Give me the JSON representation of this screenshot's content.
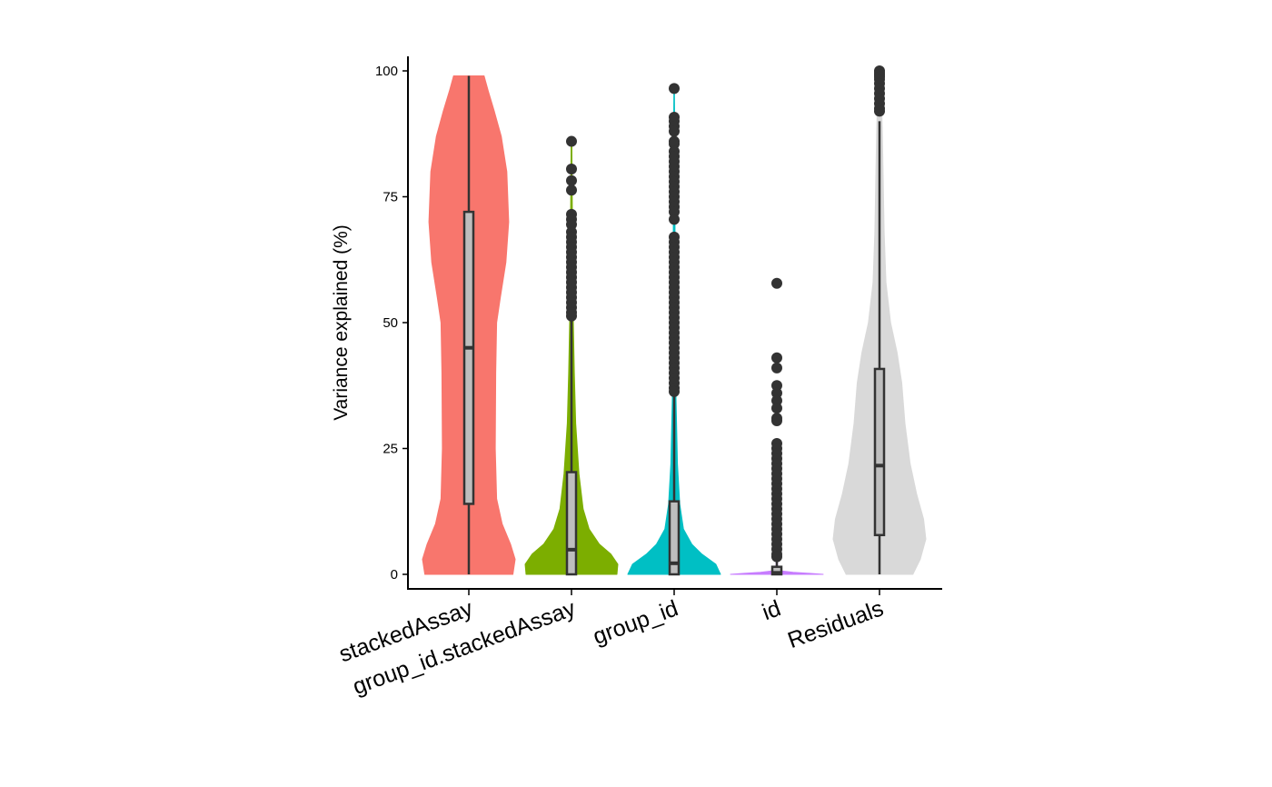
{
  "chart_data": {
    "type": "violin",
    "title": "",
    "xlabel": "",
    "ylabel": "Variance explained (%)",
    "ylim": [
      -2.5,
      103
    ],
    "yticks": [
      "0",
      "25",
      "50",
      "75",
      "100"
    ],
    "grid": false,
    "legend": "none",
    "categories": [
      "stackedAssay",
      "group_id.stackedAssay",
      "group_id",
      "id",
      "Residuals"
    ],
    "colors": [
      "#F8766D",
      "#7CAE00",
      "#00BFC4",
      "#C77CFF",
      "#D9D9D9"
    ],
    "box_fill": "#BEBEBE",
    "series": [
      {
        "name": "stackedAssay",
        "density": [
          [
            0,
            0.95
          ],
          [
            3,
            1.0
          ],
          [
            6,
            0.9
          ],
          [
            10,
            0.72
          ],
          [
            15,
            0.6
          ],
          [
            25,
            0.57
          ],
          [
            40,
            0.58
          ],
          [
            50,
            0.6
          ],
          [
            55,
            0.68
          ],
          [
            62,
            0.8
          ],
          [
            70,
            0.86
          ],
          [
            80,
            0.82
          ],
          [
            87,
            0.7
          ],
          [
            92,
            0.55
          ],
          [
            96,
            0.42
          ],
          [
            99,
            0.33
          ]
        ],
        "box": {
          "min": 0,
          "q1": 14,
          "median": 45,
          "q3": 72,
          "max": 99
        },
        "outliers": []
      },
      {
        "name": "group_id.stackedAssay",
        "density": [
          [
            0,
            0.98
          ],
          [
            2,
            1.0
          ],
          [
            4,
            0.85
          ],
          [
            6,
            0.6
          ],
          [
            9,
            0.38
          ],
          [
            13,
            0.25
          ],
          [
            20,
            0.16
          ],
          [
            30,
            0.09
          ],
          [
            40,
            0.06
          ],
          [
            50,
            0.04
          ],
          [
            60,
            0.03
          ],
          [
            70,
            0.02
          ],
          [
            80,
            0.012
          ],
          [
            86,
            0.008
          ]
        ],
        "box": {
          "min": 0,
          "q1": 0,
          "median": 4.9,
          "q3": 20.3,
          "max": 51
        },
        "outliers": [
          86,
          80.5,
          78.2,
          76.3,
          71.5,
          70.5,
          69.5,
          68,
          67,
          66,
          65,
          64,
          63,
          62,
          61,
          60,
          59,
          58,
          57,
          56,
          55,
          54,
          53,
          52,
          51.3
        ]
      },
      {
        "name": "group_id",
        "density": [
          [
            0,
            1.0
          ],
          [
            2,
            0.9
          ],
          [
            4,
            0.6
          ],
          [
            6,
            0.38
          ],
          [
            9,
            0.2
          ],
          [
            14,
            0.12
          ],
          [
            22,
            0.07
          ],
          [
            35,
            0.04
          ],
          [
            50,
            0.025
          ],
          [
            70,
            0.018
          ],
          [
            90,
            0.01
          ],
          [
            96,
            0.006
          ]
        ],
        "box": {
          "min": 0,
          "q1": 0,
          "median": 2.2,
          "q3": 14.5,
          "max": 36
        },
        "outliers": [
          96.5,
          90.8,
          90,
          89,
          88,
          86,
          85.5,
          84,
          83,
          82,
          81,
          80,
          79,
          78,
          77,
          76,
          75,
          74,
          73,
          72,
          70.5,
          67,
          66,
          65,
          64,
          63,
          62,
          61,
          60,
          59,
          58,
          57,
          56,
          55,
          54,
          53,
          52,
          51,
          50,
          49,
          48,
          47,
          46,
          45,
          44,
          43,
          42,
          41,
          40,
          39,
          38,
          37,
          36.3
        ]
      },
      {
        "name": "id",
        "density": [
          [
            0,
            1.0
          ],
          [
            0.2,
            0.7
          ],
          [
            0.4,
            0.35
          ],
          [
            0.7,
            0.08
          ],
          [
            1.2,
            0.02
          ],
          [
            3,
            0.01
          ]
        ],
        "box": {
          "min": 0,
          "q1": 0,
          "median": 0.3,
          "q3": 1.5,
          "max": 3
        },
        "outliers": [
          57.8,
          43,
          41,
          37.5,
          36,
          34.5,
          33,
          31,
          30.5,
          26,
          25,
          24,
          23,
          22,
          21,
          20,
          19,
          18,
          17,
          16,
          15,
          14,
          13,
          12,
          11,
          10,
          9,
          8,
          7,
          6,
          5,
          4,
          3.5
        ]
      },
      {
        "name": "Residuals",
        "density": [
          [
            0,
            0.72
          ],
          [
            3,
            0.88
          ],
          [
            7,
            1.0
          ],
          [
            11,
            0.95
          ],
          [
            16,
            0.8
          ],
          [
            22,
            0.66
          ],
          [
            30,
            0.55
          ],
          [
            38,
            0.48
          ],
          [
            44,
            0.38
          ],
          [
            50,
            0.24
          ],
          [
            58,
            0.14
          ],
          [
            68,
            0.1
          ],
          [
            78,
            0.08
          ],
          [
            88,
            0.06
          ],
          [
            95,
            0.04
          ],
          [
            100,
            0.02
          ]
        ],
        "box": {
          "min": 0,
          "q1": 7.8,
          "median": 21.6,
          "q3": 40.8,
          "max": 90
        },
        "outliers": [
          100,
          99.6,
          99.2,
          98.8,
          98.3,
          97.5,
          96.5,
          95.5,
          94.5,
          93.5,
          92.5,
          92
        ]
      }
    ]
  }
}
